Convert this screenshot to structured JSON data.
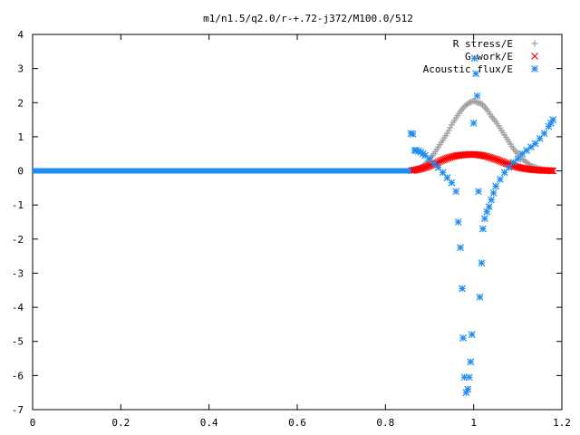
{
  "chart_data": {
    "type": "scatter",
    "title": "m1/n1.5/q2.0/r-+.72-j372/M100.0/512",
    "xlabel": "",
    "ylabel": "",
    "xlim": [
      0,
      1.2
    ],
    "ylim": [
      -7,
      4
    ],
    "x_ticks": [
      "0",
      "0.2",
      "0.4",
      "0.6",
      "0.8",
      "1",
      "1.2"
    ],
    "y_ticks": [
      "4",
      "3",
      "2",
      "1",
      "0",
      "-1",
      "-2",
      "-3",
      "-4",
      "-5",
      "-6",
      "-7"
    ],
    "grid": false,
    "legend_position": "top-right",
    "series": [
      {
        "name": "R stress/E",
        "marker": "plus",
        "color": "#a0a0a4",
        "x": [
          0.0,
          0.86,
          0.87,
          0.88,
          0.89,
          0.9,
          0.91,
          0.92,
          0.93,
          0.94,
          0.95,
          0.96,
          0.97,
          0.98,
          0.99,
          1.0,
          1.01,
          1.02,
          1.03,
          1.04,
          1.05,
          1.06,
          1.07,
          1.08,
          1.09,
          1.1,
          1.11,
          1.12,
          1.13,
          1.14,
          1.15,
          1.16,
          1.17,
          1.18
        ],
        "values": [
          0.0,
          0.02,
          0.05,
          0.1,
          0.2,
          0.35,
          0.5,
          0.7,
          0.9,
          1.1,
          1.35,
          1.55,
          1.75,
          1.9,
          2.0,
          2.05,
          2.0,
          1.95,
          1.8,
          1.6,
          1.45,
          1.25,
          1.05,
          0.85,
          0.65,
          0.5,
          0.35,
          0.25,
          0.15,
          0.1,
          0.06,
          0.03,
          0.01,
          0.0
        ]
      },
      {
        "name": "G work/E",
        "marker": "cross",
        "color": "#ff0000",
        "x": [
          0.0,
          0.86,
          0.87,
          0.88,
          0.89,
          0.9,
          0.91,
          0.92,
          0.93,
          0.94,
          0.95,
          0.96,
          0.97,
          0.98,
          0.99,
          1.0,
          1.01,
          1.02,
          1.03,
          1.04,
          1.05,
          1.06,
          1.07,
          1.08,
          1.09,
          1.1,
          1.11,
          1.12,
          1.13,
          1.14,
          1.15,
          1.16,
          1.17,
          1.18
        ],
        "values": [
          0.0,
          0.01,
          0.03,
          0.06,
          0.1,
          0.15,
          0.2,
          0.26,
          0.32,
          0.37,
          0.41,
          0.44,
          0.46,
          0.47,
          0.48,
          0.48,
          0.47,
          0.45,
          0.42,
          0.38,
          0.34,
          0.29,
          0.24,
          0.19,
          0.15,
          0.11,
          0.08,
          0.06,
          0.04,
          0.03,
          0.02,
          0.01,
          0.01,
          0.0
        ]
      },
      {
        "name": "Acoustic flux/E",
        "marker": "star",
        "color": "#1e8cf0",
        "x": [
          0.0,
          0.858,
          0.862,
          0.866,
          0.87,
          0.875,
          0.88,
          0.885,
          0.89,
          0.9,
          0.91,
          0.92,
          0.93,
          0.94,
          0.95,
          0.96,
          0.965,
          0.97,
          0.974,
          0.976,
          0.979,
          0.983,
          0.987,
          0.99,
          0.993,
          0.996,
          1.0,
          1.002,
          1.005,
          1.008,
          1.011,
          1.014,
          1.018,
          1.021,
          1.025,
          1.03,
          1.035,
          1.04,
          1.045,
          1.05,
          1.06,
          1.07,
          1.08,
          1.09,
          1.1,
          1.11,
          1.12,
          1.13,
          1.14,
          1.15,
          1.16,
          1.17,
          1.175,
          1.18
        ],
        "values": [
          0.0,
          1.1,
          1.08,
          0.6,
          0.6,
          0.58,
          0.55,
          0.5,
          0.45,
          0.35,
          0.22,
          0.1,
          -0.05,
          -0.2,
          -0.35,
          -0.6,
          -1.5,
          -2.25,
          -3.45,
          -4.9,
          -6.05,
          -6.5,
          -6.4,
          -6.05,
          -5.6,
          -4.8,
          1.4,
          3.3,
          2.85,
          2.2,
          -0.6,
          -3.7,
          -2.7,
          -1.7,
          -1.4,
          -1.2,
          -1.05,
          -0.85,
          -0.65,
          -0.45,
          -0.25,
          -0.05,
          0.1,
          0.25,
          0.35,
          0.5,
          0.6,
          0.7,
          0.8,
          0.95,
          1.1,
          1.3,
          1.4,
          1.5
        ]
      }
    ]
  }
}
